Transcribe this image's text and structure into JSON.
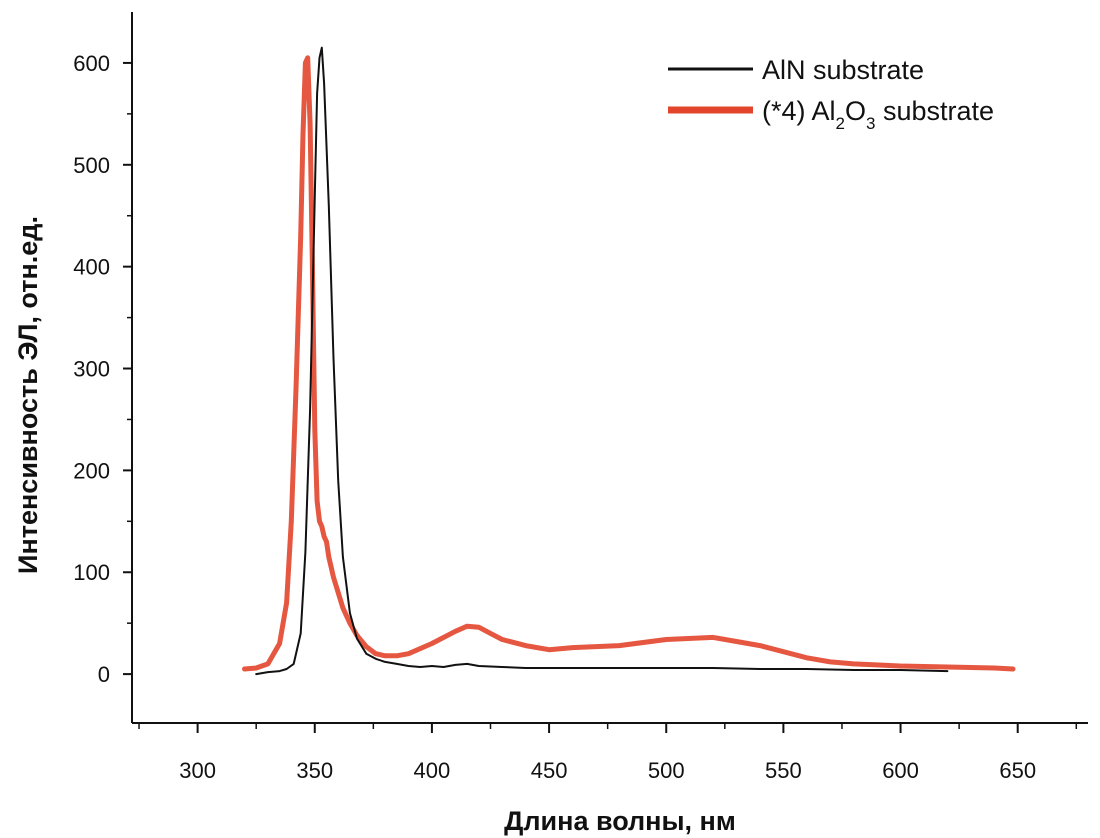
{
  "chart_data": {
    "type": "line",
    "title": "",
    "xlabel": "Длина волны, нм",
    "ylabel": "Интенсивность ЭЛ, отн.ед.",
    "xlim": [
      272,
      680
    ],
    "ylim": [
      -48,
      650
    ],
    "xticks": [
      300,
      350,
      400,
      450,
      500,
      550,
      600,
      650
    ],
    "yticks": [
      0,
      100,
      200,
      300,
      400,
      500,
      600
    ],
    "xtick_labels": [
      "300",
      "350",
      "400",
      "450",
      "500",
      "550",
      "600",
      "650"
    ],
    "ytick_labels": [
      "0",
      "100",
      "200",
      "300",
      "400",
      "500",
      "600"
    ],
    "grid": false,
    "legend_position": "top-right",
    "legend": [
      {
        "id": "aln",
        "text": "AlN substrate"
      },
      {
        "id": "al2o3",
        "prefix": "(*4) Al",
        "sub1": "2",
        "mid": "O",
        "sub2": "3",
        "suffix": " substrate"
      }
    ],
    "series": [
      {
        "name": "AlN substrate",
        "color": "#111111",
        "x": [
          325,
          330,
          335,
          338,
          341,
          344,
          346,
          348,
          350,
          351,
          352,
          353,
          354,
          356,
          358,
          360,
          362,
          365,
          368,
          372,
          376,
          380,
          385,
          390,
          395,
          400,
          405,
          410,
          415,
          420,
          430,
          440,
          450,
          460,
          480,
          500,
          520,
          540,
          560,
          580,
          600,
          620
        ],
        "y": [
          0,
          2,
          3,
          5,
          10,
          40,
          120,
          260,
          470,
          570,
          605,
          615,
          580,
          460,
          310,
          190,
          115,
          60,
          35,
          20,
          15,
          12,
          10,
          8,
          7,
          8,
          7,
          9,
          10,
          8,
          7,
          6,
          6,
          6,
          6,
          6,
          6,
          5,
          5,
          4,
          4,
          3
        ]
      },
      {
        "name": "(*4) Al2O3 substrate",
        "color": "#e2452b",
        "x": [
          320,
          325,
          330,
          335,
          338,
          340,
          342,
          344,
          345,
          346,
          347,
          348,
          349,
          350,
          351,
          352,
          353,
          354,
          355,
          356,
          358,
          360,
          362,
          365,
          368,
          372,
          376,
          380,
          385,
          390,
          400,
          410,
          415,
          420,
          425,
          430,
          440,
          450,
          460,
          480,
          500,
          520,
          530,
          540,
          550,
          560,
          570,
          580,
          600,
          620,
          640,
          648
        ],
        "y": [
          5,
          6,
          10,
          30,
          70,
          150,
          280,
          430,
          530,
          600,
          605,
          540,
          400,
          240,
          170,
          150,
          145,
          135,
          130,
          115,
          95,
          80,
          65,
          50,
          38,
          27,
          20,
          18,
          18,
          20,
          30,
          42,
          47,
          46,
          40,
          34,
          28,
          24,
          26,
          28,
          34,
          36,
          32,
          28,
          22,
          16,
          12,
          10,
          8,
          7,
          6,
          5
        ]
      }
    ]
  }
}
